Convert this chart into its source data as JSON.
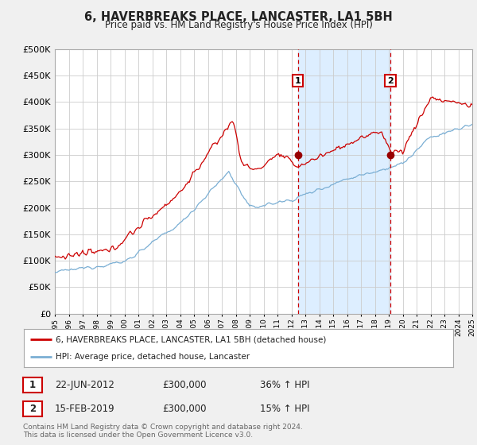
{
  "title": "6, HAVERBREAKS PLACE, LANCASTER, LA1 5BH",
  "subtitle": "Price paid vs. HM Land Registry's House Price Index (HPI)",
  "legend_line1": "6, HAVERBREAKS PLACE, LANCASTER, LA1 5BH (detached house)",
  "legend_line2": "HPI: Average price, detached house, Lancaster",
  "footnote1": "Contains HM Land Registry data © Crown copyright and database right 2024.",
  "footnote2": "This data is licensed under the Open Government Licence v3.0.",
  "sale1_label": "1",
  "sale1_date": "22-JUN-2012",
  "sale1_price": "£300,000",
  "sale1_hpi": "36% ↑ HPI",
  "sale2_label": "2",
  "sale2_date": "15-FEB-2019",
  "sale2_price": "£300,000",
  "sale2_hpi": "15% ↑ HPI",
  "sale1_x": 2012.47,
  "sale2_x": 2019.12,
  "sale_y": 300000,
  "ylim": [
    0,
    500000
  ],
  "xlim": [
    1995,
    2025
  ],
  "yticks": [
    0,
    50000,
    100000,
    150000,
    200000,
    250000,
    300000,
    350000,
    400000,
    450000,
    500000
  ],
  "red_color": "#cc0000",
  "blue_color": "#7bafd4",
  "shade_color": "#ddeeff",
  "grid_color": "#cccccc",
  "bg_color": "#f0f0f0",
  "plot_bg": "#ffffff",
  "dashed_line_color": "#cc0000"
}
